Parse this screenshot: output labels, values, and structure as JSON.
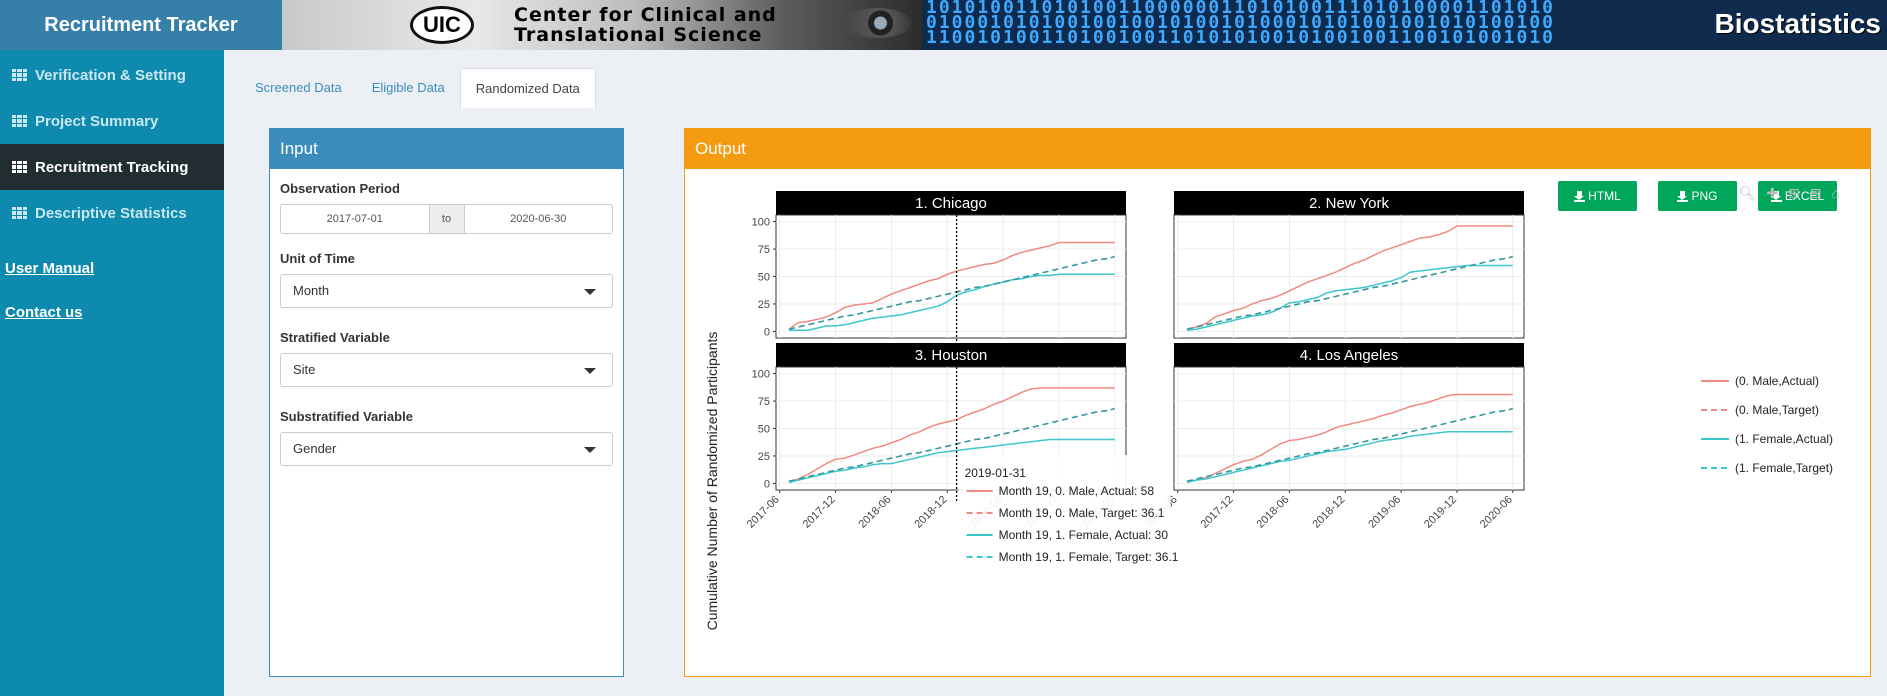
{
  "header": {
    "app_title": "Recruitment Tracker",
    "banner_logo_text": "UIC",
    "banner_line1": "Center for Clinical and",
    "banner_line2": "Translational Science",
    "banner_right": "Biostatistics"
  },
  "sidebar": {
    "items": [
      {
        "label": "Verification & Setting",
        "active": false
      },
      {
        "label": "Project Summary",
        "active": false
      },
      {
        "label": "Recruitment Tracking",
        "active": true
      },
      {
        "label": "Descriptive Statistics",
        "active": false
      }
    ],
    "links": [
      "User Manual",
      "Contact us"
    ]
  },
  "tabs": [
    {
      "label": "Screened Data",
      "active": false
    },
    {
      "label": "Eligible Data",
      "active": false
    },
    {
      "label": "Randomized Data",
      "active": true
    }
  ],
  "input": {
    "title": "Input",
    "observation_label": "Observation Period",
    "date_start": "2017-07-01",
    "date_sep": "to",
    "date_end": "2020-06-30",
    "unit_label": "Unit of Time",
    "unit_value": "Month",
    "strat_label": "Stratified Variable",
    "strat_value": "Site",
    "substrat_label": "Substratified Variable",
    "substrat_value": "Gender"
  },
  "output": {
    "title": "Output",
    "buttons": [
      "HTML",
      "PNG",
      "EXCEL"
    ]
  },
  "colors": {
    "male": "#f08a80",
    "female": "#3dc6cc"
  },
  "chart_data": {
    "type": "line",
    "ylabel": "Cumulative Number of Randomized Participants",
    "ylim": [
      0,
      100
    ],
    "yticks": [
      "100",
      "75",
      "50",
      "25",
      "0"
    ],
    "xticks": [
      "2017-06",
      "2017-12",
      "2018-06",
      "2018-12",
      "2019-06",
      "2019-12",
      "2020-06"
    ],
    "legend": [
      "(0. Male,Actual)",
      "(0. Male,Target)",
      "(1. Female,Actual)",
      "(1. Female,Target)"
    ],
    "x_months": [
      "2017-07",
      "2017-08",
      "2017-09",
      "2017-10",
      "2017-11",
      "2017-12",
      "2018-01",
      "2018-02",
      "2018-03",
      "2018-04",
      "2018-05",
      "2018-06",
      "2018-07",
      "2018-08",
      "2018-09",
      "2018-10",
      "2018-11",
      "2018-12",
      "2019-01",
      "2019-02",
      "2019-03",
      "2019-04",
      "2019-05",
      "2019-06",
      "2019-07",
      "2019-08",
      "2019-09",
      "2019-10",
      "2019-11",
      "2019-12",
      "2020-01",
      "2020-02",
      "2020-03",
      "2020-04",
      "2020-05",
      "2020-06"
    ],
    "panels": [
      {
        "title": "1. Chicago",
        "series": [
          {
            "name": "(0. Male,Actual)",
            "values": [
              2,
              8,
              9,
              11,
              13,
              17,
              22,
              24,
              25,
              26,
              30,
              34,
              37,
              40,
              43,
              46,
              48,
              52,
              55,
              57,
              59,
              61,
              62,
              65,
              69,
              72,
              74,
              76,
              78,
              81,
              81,
              81,
              81,
              81,
              81,
              81
            ]
          },
          {
            "name": "(0. Male,Target)",
            "values": [
              2,
              4,
              6,
              8,
              10,
              12,
              14,
              15,
              17,
              19,
              21,
              23,
              25,
              27,
              28,
              30,
              32,
              34,
              36,
              38,
              40,
              41,
              43,
              45,
              47,
              49,
              51,
              53,
              55,
              57,
              59,
              61,
              63,
              65,
              66,
              68
            ]
          },
          {
            "name": "(1. Female,Actual)",
            "values": [
              1,
              1,
              1,
              3,
              5,
              5,
              6,
              8,
              10,
              12,
              13,
              14,
              15,
              17,
              19,
              21,
              23,
              27,
              33,
              36,
              38,
              41,
              43,
              45,
              47,
              48,
              50,
              51,
              51,
              52,
              52,
              52,
              52,
              52,
              52,
              52
            ]
          },
          {
            "name": "(1. Female,Target)",
            "values": [
              2,
              4,
              6,
              8,
              10,
              12,
              14,
              15,
              17,
              19,
              21,
              23,
              25,
              27,
              28,
              30,
              32,
              34,
              36,
              38,
              40,
              41,
              43,
              45,
              47,
              49,
              51,
              53,
              55,
              57,
              59,
              61,
              63,
              65,
              66,
              68
            ]
          }
        ]
      },
      {
        "title": "2. New York",
        "series": [
          {
            "name": "(0. Male,Actual)",
            "values": [
              2,
              4,
              7,
              13,
              16,
              19,
              21,
              25,
              28,
              30,
              33,
              37,
              41,
              45,
              48,
              51,
              54,
              58,
              62,
              65,
              69,
              73,
              76,
              79,
              82,
              85,
              86,
              88,
              91,
              96,
              96,
              96,
              96,
              96,
              96,
              96
            ]
          },
          {
            "name": "(0. Male,Target)",
            "values": [
              2,
              4,
              6,
              8,
              10,
              12,
              14,
              15,
              17,
              19,
              21,
              23,
              25,
              27,
              28,
              30,
              32,
              34,
              36,
              38,
              40,
              41,
              43,
              45,
              47,
              49,
              51,
              53,
              55,
              57,
              59,
              61,
              63,
              65,
              66,
              68
            ]
          },
          {
            "name": "(1. Female,Actual)",
            "values": [
              1,
              2,
              4,
              6,
              8,
              10,
              12,
              14,
              15,
              17,
              21,
              26,
              27,
              29,
              31,
              35,
              37,
              38,
              39,
              40,
              42,
              44,
              46,
              49,
              54,
              55,
              56,
              57,
              58,
              59,
              60,
              60,
              60,
              60,
              60,
              60
            ]
          },
          {
            "name": "(1. Female,Target)",
            "values": [
              2,
              4,
              6,
              8,
              10,
              12,
              14,
              15,
              17,
              19,
              21,
              23,
              25,
              27,
              28,
              30,
              32,
              34,
              36,
              38,
              40,
              41,
              43,
              45,
              47,
              49,
              51,
              53,
              55,
              57,
              59,
              61,
              63,
              65,
              66,
              68
            ]
          }
        ]
      },
      {
        "title": "3. Houston",
        "series": [
          {
            "name": "(0. Male,Actual)",
            "values": [
              1,
              4,
              8,
              13,
              18,
              22,
              23,
              26,
              29,
              32,
              34,
              37,
              40,
              44,
              47,
              51,
              54,
              56,
              58,
              62,
              65,
              68,
              72,
              75,
              79,
              83,
              86,
              87,
              87,
              87,
              87,
              87,
              87,
              87,
              87,
              87
            ]
          },
          {
            "name": "(0. Male,Target)",
            "values": [
              2,
              4,
              6,
              8,
              10,
              12,
              14,
              15,
              17,
              19,
              21,
              23,
              25,
              27,
              28,
              30,
              32,
              34,
              36,
              38,
              40,
              41,
              43,
              45,
              47,
              49,
              51,
              53,
              55,
              57,
              59,
              61,
              63,
              65,
              66,
              68
            ]
          },
          {
            "name": "(1. Female,Actual)",
            "values": [
              1,
              3,
              5,
              7,
              9,
              11,
              12,
              14,
              15,
              17,
              18,
              18,
              20,
              22,
              24,
              26,
              28,
              29,
              30,
              31,
              32,
              33,
              34,
              35,
              36,
              37,
              38,
              39,
              40,
              40,
              40,
              40,
              40,
              40,
              40,
              40
            ]
          },
          {
            "name": "(1. Female,Target)",
            "values": [
              2,
              4,
              6,
              8,
              10,
              12,
              14,
              15,
              17,
              19,
              21,
              23,
              25,
              27,
              28,
              30,
              32,
              34,
              36,
              38,
              40,
              41,
              43,
              45,
              47,
              49,
              51,
              53,
              55,
              57,
              59,
              61,
              63,
              65,
              66,
              68
            ]
          }
        ]
      },
      {
        "title": "4. Los Angeles",
        "series": [
          {
            "name": "(0. Male,Actual)",
            "values": [
              1,
              3,
              5,
              9,
              13,
              17,
              20,
              22,
              26,
              31,
              36,
              39,
              40,
              42,
              44,
              47,
              51,
              53,
              55,
              57,
              59,
              62,
              64,
              67,
              70,
              72,
              74,
              77,
              80,
              81,
              81,
              81,
              81,
              81,
              81,
              81
            ]
          },
          {
            "name": "(0. Male,Target)",
            "values": [
              2,
              4,
              6,
              8,
              10,
              12,
              14,
              15,
              17,
              19,
              21,
              23,
              25,
              27,
              28,
              30,
              32,
              34,
              36,
              38,
              40,
              41,
              43,
              45,
              47,
              49,
              51,
              53,
              55,
              57,
              59,
              61,
              63,
              65,
              66,
              68
            ]
          },
          {
            "name": "(1. Female,Actual)",
            "values": [
              1,
              3,
              4,
              6,
              8,
              10,
              12,
              14,
              16,
              18,
              20,
              21,
              23,
              25,
              27,
              29,
              30,
              31,
              33,
              35,
              37,
              39,
              40,
              41,
              43,
              44,
              45,
              46,
              47,
              47,
              47,
              47,
              47,
              47,
              47,
              47
            ]
          },
          {
            "name": "(1. Female,Target)",
            "values": [
              2,
              4,
              6,
              8,
              10,
              12,
              14,
              15,
              17,
              19,
              21,
              23,
              25,
              27,
              28,
              30,
              32,
              34,
              36,
              38,
              40,
              41,
              43,
              45,
              47,
              49,
              51,
              53,
              55,
              57,
              59,
              61,
              63,
              65,
              66,
              68
            ]
          }
        ]
      }
    ],
    "hover": {
      "date": "2019-01-31",
      "lines": [
        "Month 19, 0. Male, Actual: 58",
        "Month 19, 0. Male, Target: 36.1",
        "Month 19, 1. Female, Actual: 30",
        "Month 19, 1. Female, Target: 36.1"
      ]
    }
  }
}
